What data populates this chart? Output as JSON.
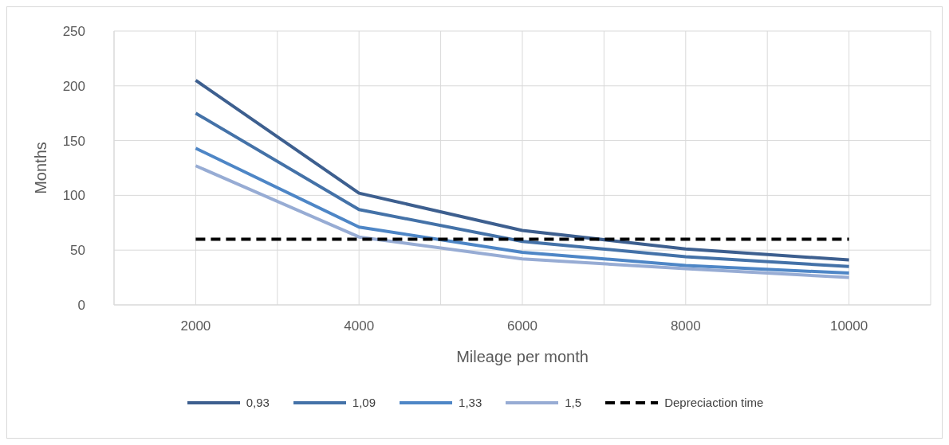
{
  "chart_data": {
    "type": "line",
    "xlabel": "Mileage per month",
    "ylabel": "Months",
    "x": [
      2000,
      4000,
      6000,
      8000,
      10000
    ],
    "xlim": [
      1000,
      11000
    ],
    "xticks": [
      {
        "value": 1000,
        "label": null
      },
      2000,
      {
        "value": 3000,
        "label": null
      },
      4000,
      {
        "value": 5000,
        "label": null
      },
      6000,
      {
        "value": 7000,
        "label": null
      },
      8000,
      {
        "value": 9000,
        "label": null
      },
      10000,
      {
        "value": 11000,
        "label": null
      }
    ],
    "ylim": [
      0,
      250
    ],
    "yticks": [
      0,
      50,
      100,
      150,
      200,
      250
    ],
    "grid": true,
    "legend": "bottom",
    "marker": "none",
    "series": [
      {
        "name": "0,93",
        "color": "#3d5f8f",
        "values": [
          205,
          102,
          68,
          51,
          41
        ]
      },
      {
        "name": "1,09",
        "color": "#4472a8",
        "values": [
          175,
          87,
          58,
          44,
          35
        ]
      },
      {
        "name": "1,33",
        "color": "#4e86c6",
        "values": [
          143,
          71,
          48,
          36,
          29
        ]
      },
      {
        "name": "1,5",
        "color": "#97acd4",
        "values": [
          127,
          62,
          42,
          33,
          25
        ]
      },
      {
        "name": "Depreciaction time",
        "color": "#000000",
        "line_style": "dashed",
        "values": [
          60,
          60,
          60,
          60,
          60
        ]
      }
    ]
  }
}
